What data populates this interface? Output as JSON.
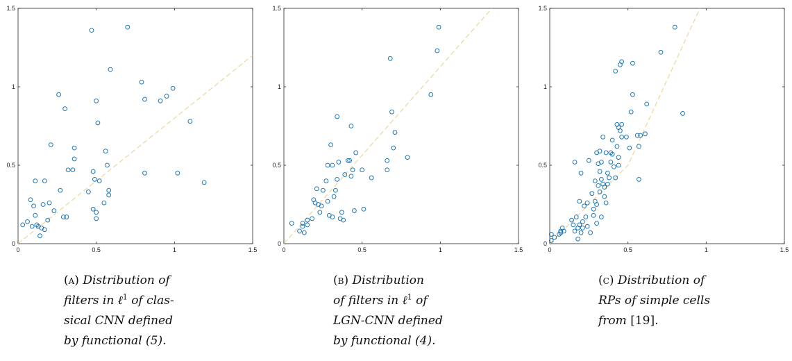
{
  "chart_data": [
    {
      "type": "scatter",
      "xlim": [
        0,
        1.5
      ],
      "ylim": [
        0,
        1.5
      ],
      "xticks": [
        "0",
        "0.5",
        "1",
        "1.5"
      ],
      "yticks": [
        "0",
        "0.5",
        "1",
        "1.5"
      ],
      "grid": false,
      "marker_color": "#1f77b4",
      "fit_line": {
        "color": "#edd9a3",
        "style": "dashed",
        "points": [
          [
            0,
            0
          ],
          [
            1.5,
            1.2
          ]
        ]
      },
      "points": [
        [
          0.03,
          0.12
        ],
        [
          0.06,
          0.14
        ],
        [
          0.08,
          0.28
        ],
        [
          0.09,
          0.11
        ],
        [
          0.1,
          0.24
        ],
        [
          0.11,
          0.4
        ],
        [
          0.11,
          0.18
        ],
        [
          0.12,
          0.12
        ],
        [
          0.13,
          0.11
        ],
        [
          0.14,
          0.05
        ],
        [
          0.15,
          0.1
        ],
        [
          0.16,
          0.25
        ],
        [
          0.17,
          0.4
        ],
        [
          0.17,
          0.09
        ],
        [
          0.19,
          0.15
        ],
        [
          0.2,
          0.26
        ],
        [
          0.21,
          0.63
        ],
        [
          0.23,
          0.21
        ],
        [
          0.26,
          0.95
        ],
        [
          0.27,
          0.34
        ],
        [
          0.29,
          0.17
        ],
        [
          0.3,
          0.86
        ],
        [
          0.31,
          0.17
        ],
        [
          0.32,
          0.47
        ],
        [
          0.35,
          0.47
        ],
        [
          0.36,
          0.54
        ],
        [
          0.36,
          0.61
        ],
        [
          0.45,
          0.33
        ],
        [
          0.47,
          1.36
        ],
        [
          0.48,
          0.22
        ],
        [
          0.48,
          0.46
        ],
        [
          0.49,
          0.41
        ],
        [
          0.5,
          0.16
        ],
        [
          0.5,
          0.2
        ],
        [
          0.5,
          0.91
        ],
        [
          0.51,
          0.77
        ],
        [
          0.52,
          0.4
        ],
        [
          0.55,
          0.26
        ],
        [
          0.56,
          0.59
        ],
        [
          0.57,
          0.5
        ],
        [
          0.58,
          0.31
        ],
        [
          0.58,
          0.34
        ],
        [
          0.59,
          1.11
        ],
        [
          0.7,
          1.38
        ],
        [
          0.79,
          1.03
        ],
        [
          0.81,
          0.92
        ],
        [
          0.81,
          0.45
        ],
        [
          0.91,
          0.91
        ],
        [
          0.95,
          0.94
        ],
        [
          0.99,
          0.99
        ],
        [
          1.02,
          0.45
        ],
        [
          1.1,
          0.78
        ],
        [
          1.19,
          0.39
        ]
      ]
    },
    {
      "type": "scatter",
      "xlim": [
        0,
        1.5
      ],
      "ylim": [
        0,
        1.5
      ],
      "xticks": [
        "0",
        "0.5",
        "1",
        "1.5"
      ],
      "yticks": [
        "0",
        "0.5",
        "1",
        "1.5"
      ],
      "grid": false,
      "marker_color": "#1f77b4",
      "fit_line": {
        "color": "#edd9a3",
        "style": "dashed",
        "points": [
          [
            0,
            0
          ],
          [
            1.33,
            1.5
          ]
        ]
      },
      "points": [
        [
          0.05,
          0.13
        ],
        [
          0.1,
          0.08
        ],
        [
          0.12,
          0.11
        ],
        [
          0.12,
          0.13
        ],
        [
          0.13,
          0.07
        ],
        [
          0.15,
          0.15
        ],
        [
          0.15,
          0.12
        ],
        [
          0.18,
          0.16
        ],
        [
          0.19,
          0.28
        ],
        [
          0.2,
          0.26
        ],
        [
          0.21,
          0.35
        ],
        [
          0.22,
          0.25
        ],
        [
          0.23,
          0.2
        ],
        [
          0.24,
          0.24
        ],
        [
          0.25,
          0.34
        ],
        [
          0.27,
          0.4
        ],
        [
          0.28,
          0.27
        ],
        [
          0.28,
          0.5
        ],
        [
          0.29,
          0.18
        ],
        [
          0.3,
          0.63
        ],
        [
          0.31,
          0.5
        ],
        [
          0.31,
          0.17
        ],
        [
          0.32,
          0.3
        ],
        [
          0.33,
          0.34
        ],
        [
          0.34,
          0.41
        ],
        [
          0.34,
          0.81
        ],
        [
          0.35,
          0.52
        ],
        [
          0.36,
          0.16
        ],
        [
          0.37,
          0.2
        ],
        [
          0.38,
          0.15
        ],
        [
          0.39,
          0.44
        ],
        [
          0.41,
          0.53
        ],
        [
          0.42,
          0.53
        ],
        [
          0.43,
          0.43
        ],
        [
          0.43,
          0.75
        ],
        [
          0.44,
          0.47
        ],
        [
          0.45,
          0.21
        ],
        [
          0.46,
          0.58
        ],
        [
          0.5,
          0.47
        ],
        [
          0.51,
          0.22
        ],
        [
          0.56,
          0.42
        ],
        [
          0.66,
          0.53
        ],
        [
          0.66,
          0.47
        ],
        [
          0.68,
          1.18
        ],
        [
          0.69,
          0.84
        ],
        [
          0.7,
          0.61
        ],
        [
          0.71,
          0.71
        ],
        [
          0.79,
          0.55
        ],
        [
          0.94,
          0.95
        ],
        [
          0.98,
          1.23
        ],
        [
          0.99,
          1.38
        ]
      ]
    },
    {
      "type": "scatter",
      "xlim": [
        0,
        1.5
      ],
      "ylim": [
        0,
        1.5
      ],
      "xticks": [
        "0",
        "0.5",
        "1",
        "1.5"
      ],
      "yticks": [
        "0",
        "0.5",
        "1",
        "1.5"
      ],
      "grid": false,
      "marker_color": "#1f77b4",
      "fit_line": {
        "color": "#edd9a3",
        "style": "dashed",
        "points": [
          [
            0,
            0
          ],
          [
            0.5,
            0.5
          ],
          [
            0.96,
            1.5
          ]
        ]
      },
      "points": [
        [
          0.01,
          0.02
        ],
        [
          0.01,
          0.06
        ],
        [
          0.03,
          0.04
        ],
        [
          0.06,
          0.06
        ],
        [
          0.07,
          0.08
        ],
        [
          0.07,
          0.07
        ],
        [
          0.08,
          0.1
        ],
        [
          0.09,
          0.08
        ],
        [
          0.14,
          0.15
        ],
        [
          0.15,
          0.12
        ],
        [
          0.16,
          0.08
        ],
        [
          0.16,
          0.52
        ],
        [
          0.17,
          0.17
        ],
        [
          0.18,
          0.1
        ],
        [
          0.18,
          0.03
        ],
        [
          0.19,
          0.12
        ],
        [
          0.19,
          0.27
        ],
        [
          0.2,
          0.07
        ],
        [
          0.2,
          0.45
        ],
        [
          0.21,
          0.1
        ],
        [
          0.21,
          0.14
        ],
        [
          0.22,
          0.24
        ],
        [
          0.23,
          0.17
        ],
        [
          0.24,
          0.11
        ],
        [
          0.24,
          0.26
        ],
        [
          0.25,
          0.53
        ],
        [
          0.26,
          0.07
        ],
        [
          0.27,
          0.32
        ],
        [
          0.28,
          0.22
        ],
        [
          0.28,
          0.18
        ],
        [
          0.29,
          0.4
        ],
        [
          0.29,
          0.27
        ],
        [
          0.3,
          0.25
        ],
        [
          0.3,
          0.58
        ],
        [
          0.3,
          0.13
        ],
        [
          0.31,
          0.51
        ],
        [
          0.31,
          0.37
        ],
        [
          0.32,
          0.46
        ],
        [
          0.32,
          0.59
        ],
        [
          0.32,
          0.33
        ],
        [
          0.33,
          0.52
        ],
        [
          0.33,
          0.41
        ],
        [
          0.33,
          0.17
        ],
        [
          0.34,
          0.68
        ],
        [
          0.34,
          0.38
        ],
        [
          0.35,
          0.36
        ],
        [
          0.35,
          0.3
        ],
        [
          0.36,
          0.58
        ],
        [
          0.36,
          0.26
        ],
        [
          0.37,
          0.45
        ],
        [
          0.37,
          0.38
        ],
        [
          0.38,
          0.42
        ],
        [
          0.39,
          0.58
        ],
        [
          0.39,
          0.52
        ],
        [
          0.4,
          0.57
        ],
        [
          0.4,
          0.66
        ],
        [
          0.41,
          0.49
        ],
        [
          0.42,
          0.42
        ],
        [
          0.42,
          1.1
        ],
        [
          0.43,
          0.76
        ],
        [
          0.43,
          0.62
        ],
        [
          0.44,
          0.55
        ],
        [
          0.44,
          0.74
        ],
        [
          0.44,
          0.5
        ],
        [
          0.45,
          0.72
        ],
        [
          0.45,
          1.14
        ],
        [
          0.46,
          0.68
        ],
        [
          0.46,
          0.76
        ],
        [
          0.46,
          1.16
        ],
        [
          0.49,
          0.68
        ],
        [
          0.51,
          0.61
        ],
        [
          0.52,
          0.84
        ],
        [
          0.53,
          0.95
        ],
        [
          0.53,
          1.15
        ],
        [
          0.56,
          0.69
        ],
        [
          0.57,
          0.62
        ],
        [
          0.57,
          0.41
        ],
        [
          0.58,
          0.69
        ],
        [
          0.61,
          0.7
        ],
        [
          0.62,
          0.89
        ],
        [
          0.71,
          1.22
        ],
        [
          0.8,
          1.38
        ],
        [
          0.85,
          0.83
        ]
      ]
    }
  ],
  "captions": [
    {
      "label": "(a)",
      "lines": [
        {
          "before": "Distribution of",
          "sup": "",
          "after": ""
        },
        {
          "before": "filters in ℓ",
          "sup": "1",
          "after": " of clas-"
        },
        {
          "before": "sical CNN defined",
          "sup": "",
          "after": ""
        },
        {
          "before": "by functional (5).",
          "sup": "",
          "after": ""
        }
      ]
    },
    {
      "label": "(b)",
      "lines": [
        {
          "before": "Distribution",
          "sup": "",
          "after": ""
        },
        {
          "before": "of filters in ℓ",
          "sup": "1",
          "after": " of"
        },
        {
          "before": "LGN-CNN defined",
          "sup": "",
          "after": ""
        },
        {
          "before": "by functional (4).",
          "sup": "",
          "after": ""
        }
      ]
    },
    {
      "label": "(c)",
      "lines": [
        {
          "before": "Distribution of",
          "sup": "",
          "after": ""
        },
        {
          "before": "RPs of simple cells",
          "sup": "",
          "after": ""
        },
        {
          "before": "from ",
          "sup": "",
          "after": "",
          "ref": "[19]",
          "tail": "."
        }
      ]
    }
  ]
}
